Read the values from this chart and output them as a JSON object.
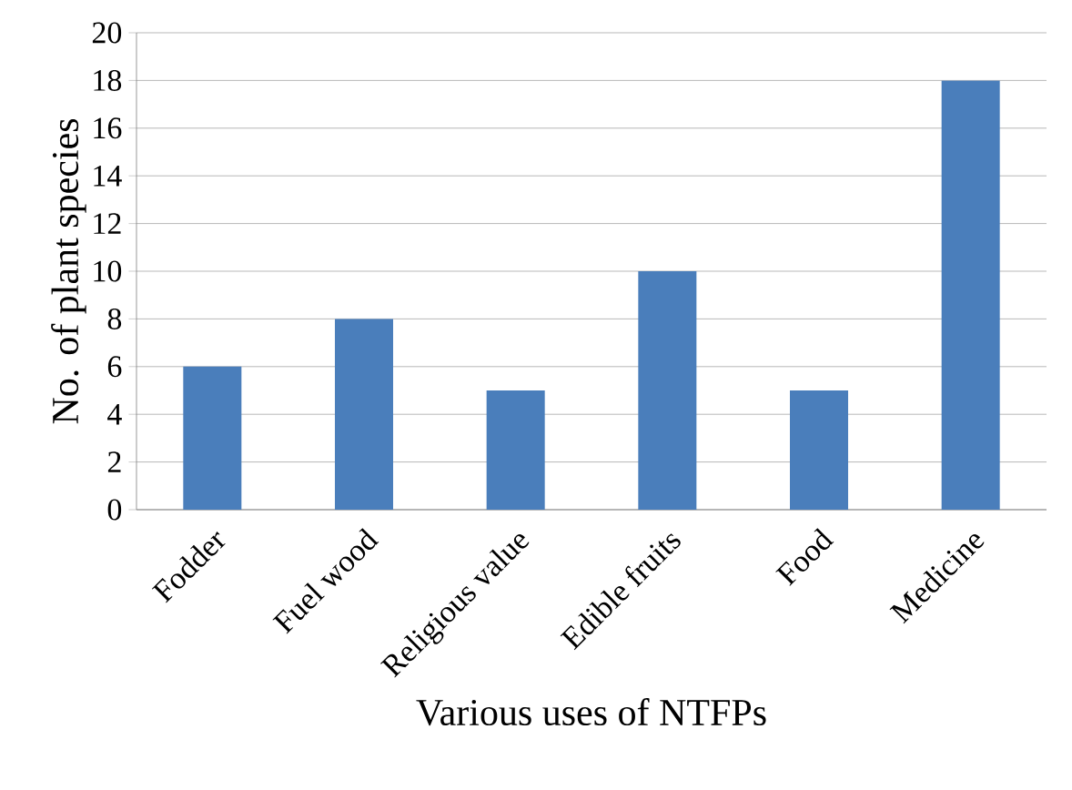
{
  "chart_data": {
    "type": "bar",
    "xlabel": "Various uses of NTFPs",
    "ylabel": "No. of plant species",
    "categories": [
      "Fodder",
      "Fuel wood",
      "Religious value",
      "Edible fruits",
      "Food",
      "Medicine"
    ],
    "values": [
      6,
      8,
      5,
      10,
      5,
      18
    ],
    "color": "#4a7ebb",
    "ylim": [
      0,
      20
    ],
    "yticks": [
      0,
      2,
      4,
      6,
      8,
      10,
      12,
      14,
      16,
      18,
      20
    ],
    "grid": "y"
  }
}
